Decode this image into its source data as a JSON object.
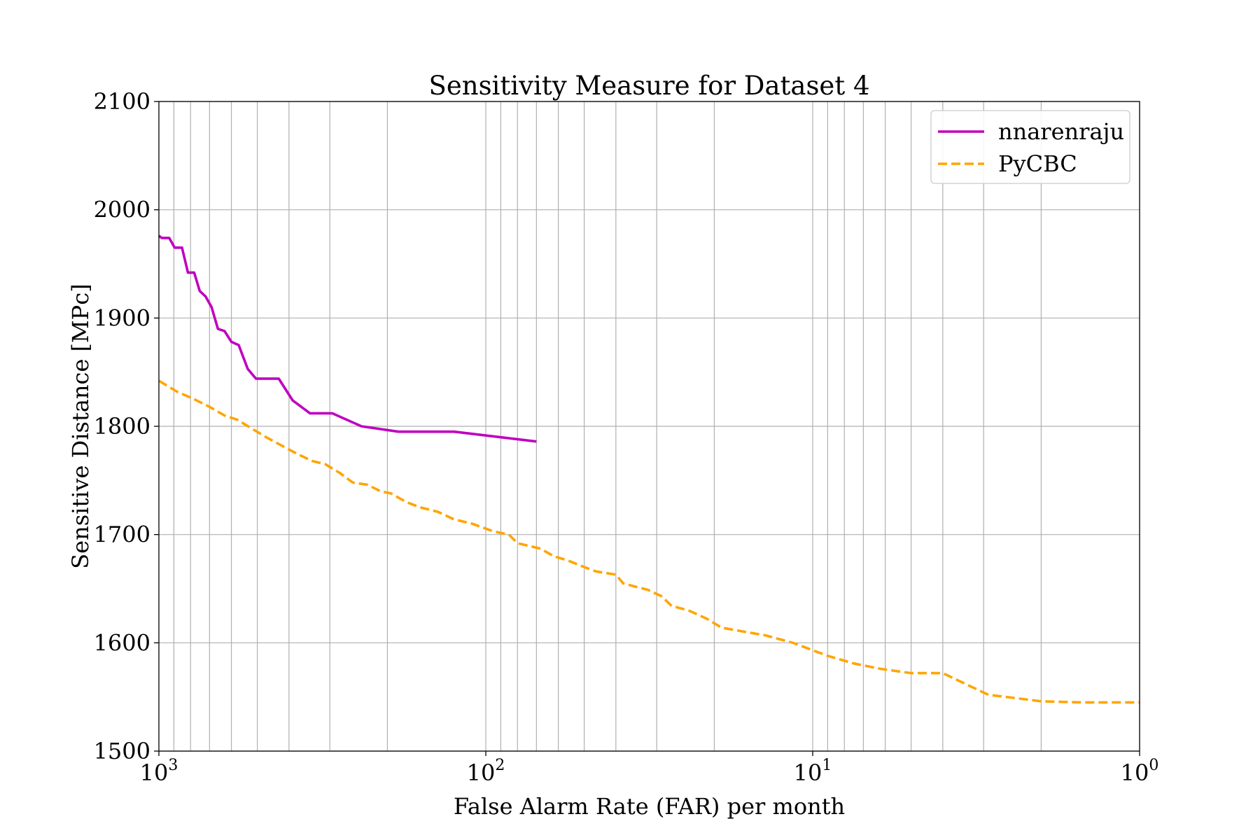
{
  "chart_data": {
    "type": "line",
    "title": "Sensitivity Measure for Dataset 4",
    "xlabel": "False Alarm Rate (FAR) per month",
    "ylabel": "Sensitive Distance [MPc]",
    "x_scale": "log",
    "x_inverted": true,
    "xlim": [
      1000,
      1
    ],
    "ylim": [
      1500,
      2100
    ],
    "grid": true,
    "legend_position": "top-right",
    "x_ticks": [
      {
        "value": 1000,
        "base": "10",
        "exp": "3"
      },
      {
        "value": 100,
        "base": "10",
        "exp": "2"
      },
      {
        "value": 10,
        "base": "10",
        "exp": "1"
      },
      {
        "value": 1,
        "base": "10",
        "exp": "0"
      }
    ],
    "y_ticks": [
      "1500",
      "1600",
      "1700",
      "1800",
      "1900",
      "2000",
      "2100"
    ],
    "series": [
      {
        "name": "nnarenraju",
        "color": "#bf00bf",
        "style": "solid",
        "points": [
          [
            1000,
            1976
          ],
          [
            980,
            1974
          ],
          [
            930,
            1974
          ],
          [
            895,
            1965
          ],
          [
            850,
            1965
          ],
          [
            815,
            1942
          ],
          [
            780,
            1942
          ],
          [
            750,
            1925
          ],
          [
            720,
            1920
          ],
          [
            690,
            1910
          ],
          [
            660,
            1890
          ],
          [
            630,
            1888
          ],
          [
            600,
            1878
          ],
          [
            570,
            1875
          ],
          [
            535,
            1853
          ],
          [
            505,
            1844
          ],
          [
            430,
            1844
          ],
          [
            390,
            1824
          ],
          [
            345,
            1812
          ],
          [
            295,
            1812
          ],
          [
            240,
            1800
          ],
          [
            185,
            1795
          ],
          [
            125,
            1795
          ],
          [
            70,
            1786
          ]
        ]
      },
      {
        "name": "PyCBC",
        "color": "#ffa500",
        "style": "dashed",
        "points": [
          [
            1000,
            1842
          ],
          [
            880,
            1832
          ],
          [
            780,
            1825
          ],
          [
            700,
            1818
          ],
          [
            630,
            1810
          ],
          [
            575,
            1806
          ],
          [
            520,
            1798
          ],
          [
            470,
            1790
          ],
          [
            420,
            1782
          ],
          [
            380,
            1775
          ],
          [
            340,
            1768
          ],
          [
            310,
            1765
          ],
          [
            280,
            1757
          ],
          [
            255,
            1748
          ],
          [
            230,
            1746
          ],
          [
            210,
            1740
          ],
          [
            195,
            1738
          ],
          [
            175,
            1730
          ],
          [
            158,
            1725
          ],
          [
            140,
            1721
          ],
          [
            125,
            1714
          ],
          [
            110,
            1710
          ],
          [
            95,
            1703
          ],
          [
            85,
            1700
          ],
          [
            80,
            1692
          ],
          [
            75,
            1690
          ],
          [
            68,
            1687
          ],
          [
            62,
            1680
          ],
          [
            56,
            1676
          ],
          [
            50,
            1670
          ],
          [
            46,
            1666
          ],
          [
            40,
            1663
          ],
          [
            38,
            1655
          ],
          [
            35,
            1652
          ],
          [
            32,
            1649
          ],
          [
            29,
            1643
          ],
          [
            27,
            1634
          ],
          [
            24,
            1630
          ],
          [
            21,
            1622
          ],
          [
            19,
            1614
          ],
          [
            16,
            1610
          ],
          [
            14,
            1607
          ],
          [
            11.5,
            1600
          ],
          [
            9,
            1588
          ],
          [
            7.5,
            1581
          ],
          [
            6.2,
            1576
          ],
          [
            5,
            1572
          ],
          [
            4,
            1572
          ],
          [
            3.3,
            1560
          ],
          [
            2.9,
            1552
          ],
          [
            2.4,
            1549
          ],
          [
            2,
            1546
          ],
          [
            1.5,
            1545
          ],
          [
            1,
            1545
          ]
        ]
      }
    ]
  }
}
